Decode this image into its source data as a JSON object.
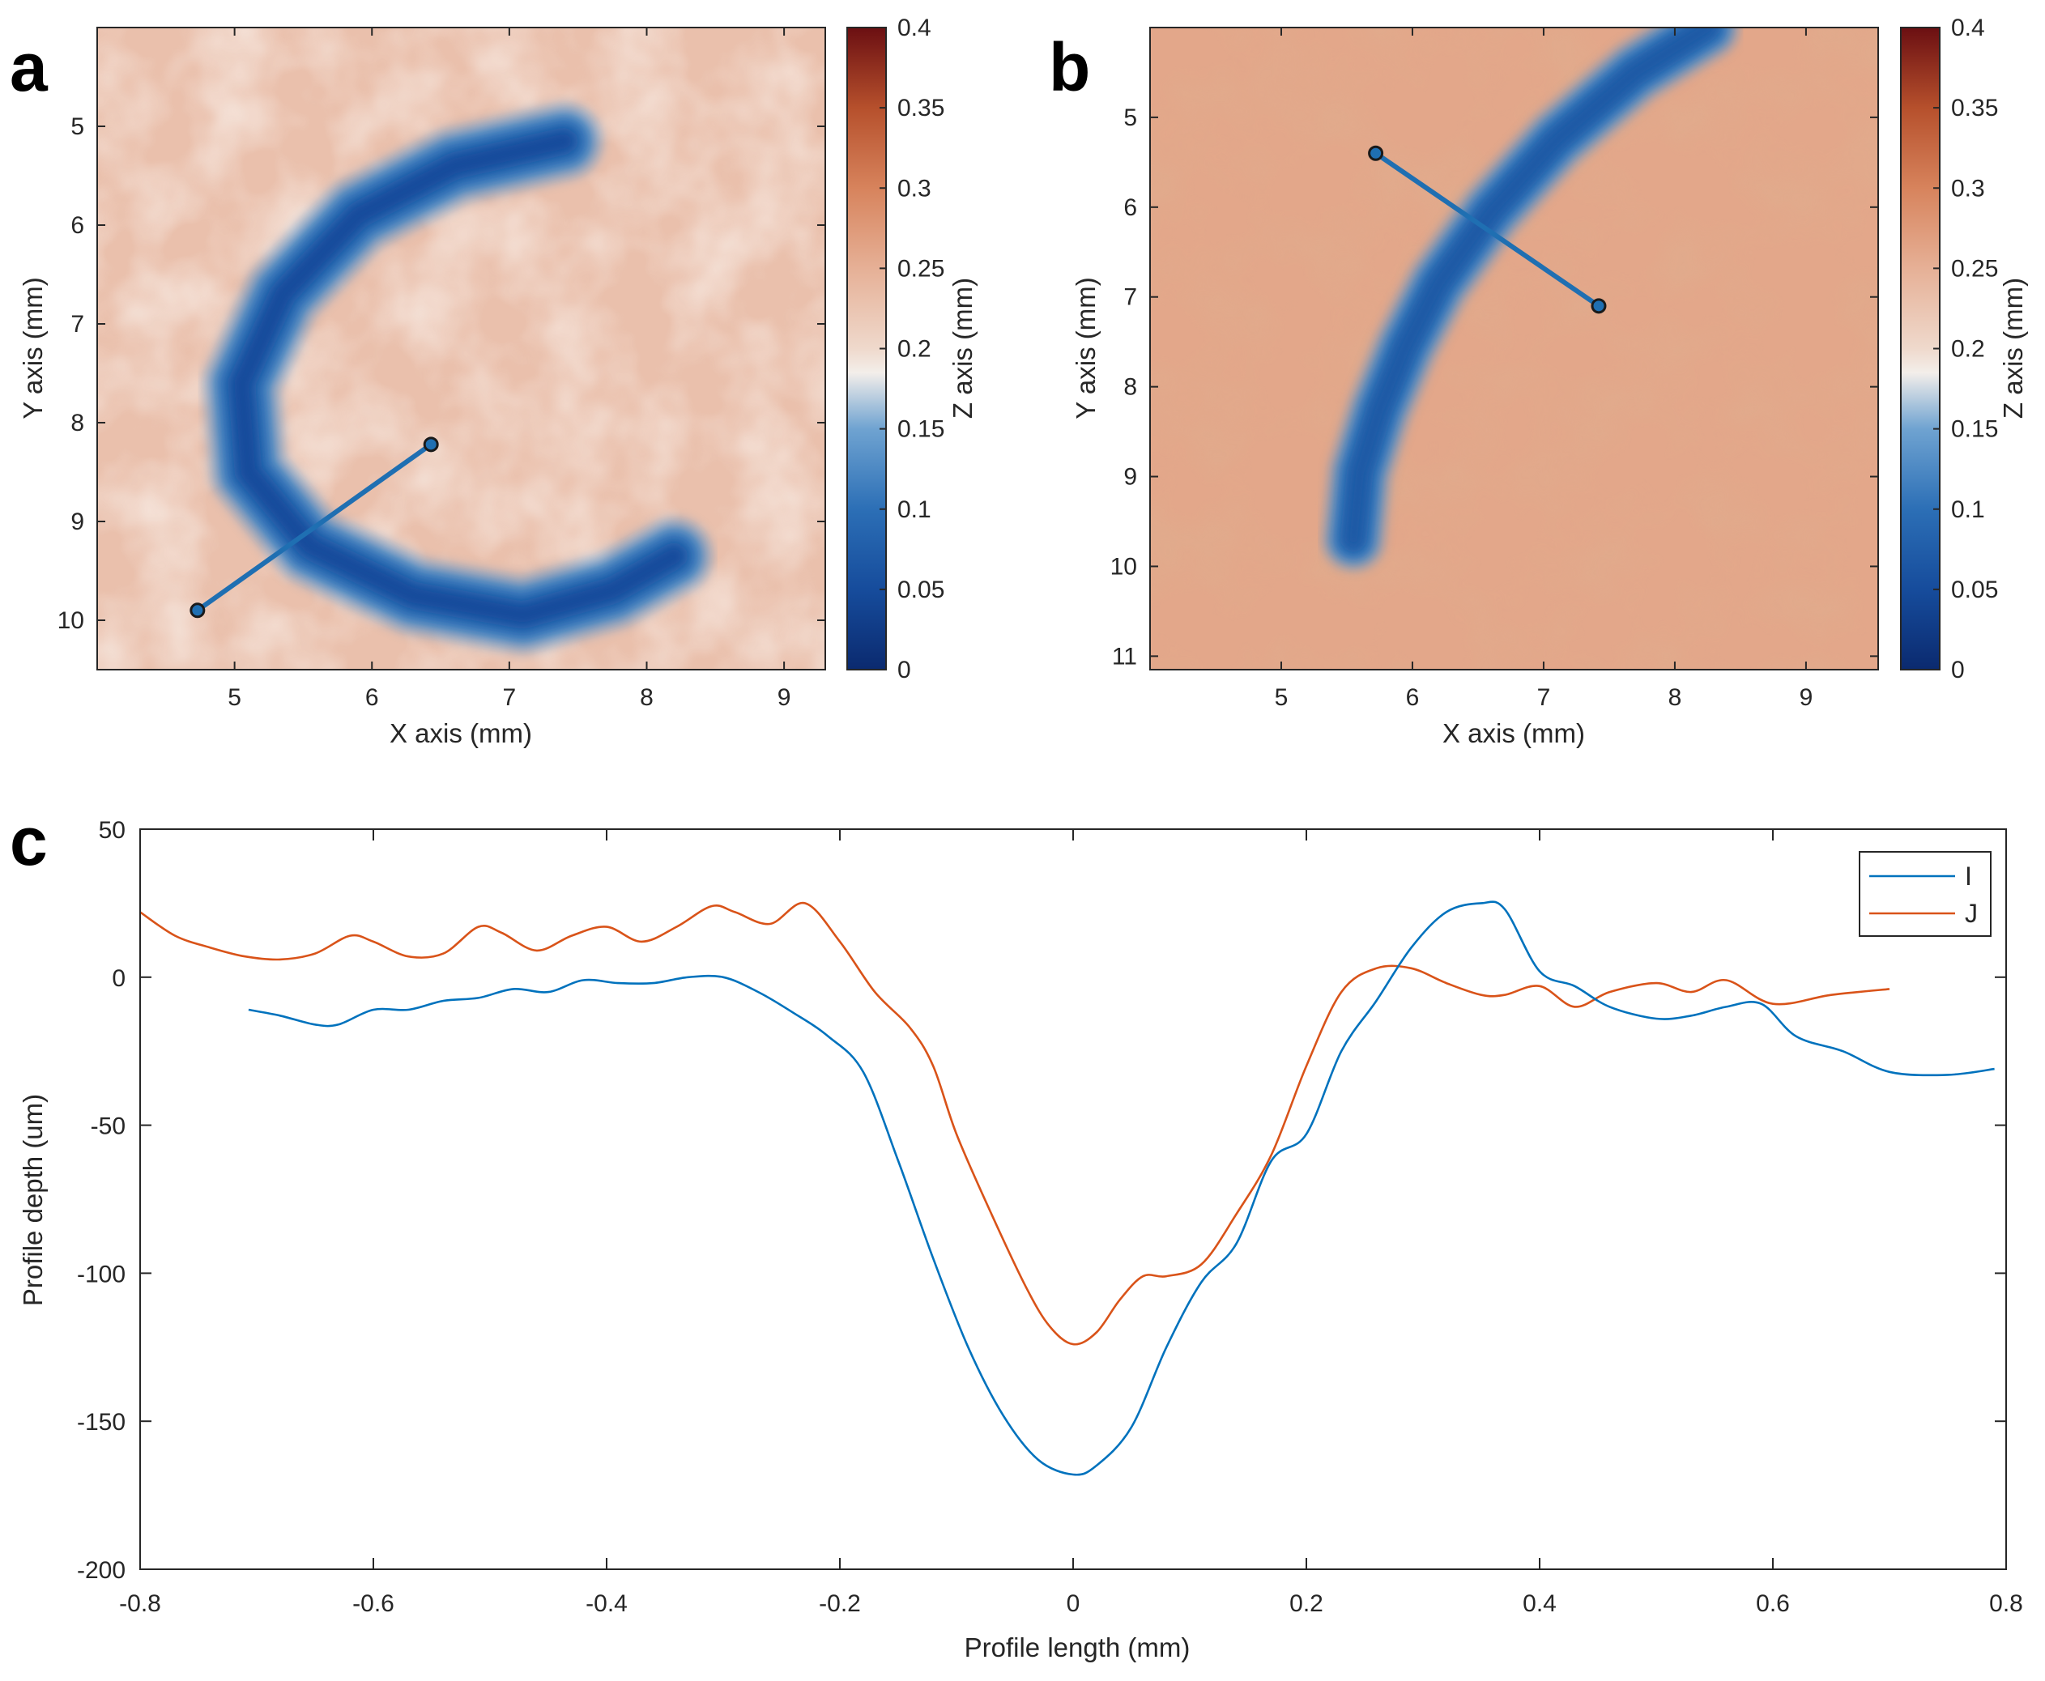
{
  "colors": {
    "series_I": "#0072BD",
    "series_J": "#D95319",
    "axis": "#262626",
    "profile_line": "#1f6fb2"
  },
  "colormap_stops": [
    [
      0,
      "#0b2a6f"
    ],
    [
      0.05,
      "#164c9c"
    ],
    [
      0.1,
      "#2c6fb6"
    ],
    [
      0.15,
      "#6fa3d1"
    ],
    [
      0.185,
      "#f3eeea"
    ],
    [
      0.2,
      "#efd9cc"
    ],
    [
      0.25,
      "#e6b096"
    ],
    [
      0.3,
      "#d7835c"
    ],
    [
      0.35,
      "#b6502c"
    ],
    [
      0.4,
      "#6b0f12"
    ]
  ],
  "chart_data": [
    {
      "panel": "a",
      "type": "heatmap",
      "xlabel": "X axis (mm)",
      "ylabel": "Y axis (mm)",
      "xlim": [
        4,
        9.3
      ],
      "ylim": [
        4,
        10.5
      ],
      "x_ticks": [
        5,
        6,
        7,
        8,
        9
      ],
      "y_ticks": [
        5,
        6,
        7,
        8,
        9,
        10
      ],
      "colorbar": {
        "label": "Z axis (mm)",
        "range": [
          0,
          0.4
        ],
        "ticks": [
          0,
          0.05,
          0.1,
          0.15,
          0.2,
          0.25,
          0.3,
          0.35,
          0.4
        ],
        "tick_labels": [
          "0",
          "0.05",
          "0.1",
          "0.15",
          "0.2",
          "0.25",
          "0.3",
          "0.35",
          "0.4"
        ]
      },
      "profile_line": [
        [
          4.73,
          9.9
        ],
        [
          6.43,
          8.22
        ]
      ],
      "groove_path": [
        [
          7.4,
          5.15
        ],
        [
          6.6,
          5.4
        ],
        [
          5.9,
          5.9
        ],
        [
          5.35,
          6.7
        ],
        [
          5.05,
          7.6
        ],
        [
          5.1,
          8.5
        ],
        [
          5.55,
          9.25
        ],
        [
          6.3,
          9.75
        ],
        [
          7.1,
          9.95
        ],
        [
          7.75,
          9.7
        ],
        [
          8.2,
          9.35
        ]
      ],
      "groove_width_mm": 0.42,
      "groove_depth": 0.05,
      "background_value": 0.23
    },
    {
      "panel": "b",
      "type": "heatmap",
      "xlabel": "X axis (mm)",
      "ylabel": "Y axis (mm)",
      "xlim": [
        4,
        9.55
      ],
      "ylim": [
        4,
        11.15
      ],
      "x_ticks": [
        5,
        6,
        7,
        8,
        9
      ],
      "y_ticks": [
        5,
        6,
        7,
        8,
        9,
        10,
        11
      ],
      "colorbar": {
        "label": "Z axis (mm)",
        "range": [
          0,
          0.4
        ],
        "ticks": [
          0,
          0.05,
          0.1,
          0.15,
          0.2,
          0.25,
          0.3,
          0.35,
          0.4
        ],
        "tick_labels": [
          "0",
          "0.05",
          "0.1",
          "0.15",
          "0.2",
          "0.25",
          "0.3",
          "0.35",
          "0.4"
        ]
      },
      "profile_line": [
        [
          5.72,
          5.4
        ],
        [
          7.42,
          7.1
        ]
      ],
      "groove_path": [
        [
          8.25,
          4.0
        ],
        [
          7.7,
          4.5
        ],
        [
          7.1,
          5.25
        ],
        [
          6.6,
          6.05
        ],
        [
          6.2,
          6.85
        ],
        [
          5.95,
          7.55
        ],
        [
          5.75,
          8.25
        ],
        [
          5.6,
          8.95
        ],
        [
          5.55,
          9.7
        ]
      ],
      "groove_width_mm": 0.36,
      "groove_depth": 0.07,
      "background_value": 0.26
    },
    {
      "panel": "c",
      "type": "line",
      "xlabel": "Profile length (mm)",
      "ylabel": "Profile depth (um)",
      "xlim": [
        -0.8,
        0.8
      ],
      "ylim": [
        -200,
        50
      ],
      "x_ticks": [
        -0.8,
        -0.6,
        -0.4,
        -0.2,
        0,
        0.2,
        0.4,
        0.6,
        0.8
      ],
      "x_tick_labels": [
        "-0.8",
        "-0.6",
        "-0.4",
        "-0.2",
        "0",
        "0.2",
        "0.4",
        "0.6",
        "0.8"
      ],
      "y_ticks": [
        -200,
        -150,
        -100,
        -50,
        0,
        50
      ],
      "y_tick_labels": [
        "-200",
        "-150",
        "-100",
        "-50",
        "0",
        "50"
      ],
      "legend_position": "top-right",
      "series": [
        {
          "name": "I",
          "x": [
            -0.707,
            -0.68,
            -0.65,
            -0.63,
            -0.6,
            -0.57,
            -0.54,
            -0.51,
            -0.48,
            -0.45,
            -0.42,
            -0.39,
            -0.36,
            -0.33,
            -0.3,
            -0.27,
            -0.24,
            -0.21,
            -0.18,
            -0.15,
            -0.12,
            -0.09,
            -0.06,
            -0.03,
            0,
            0.02,
            0.05,
            0.08,
            0.11,
            0.14,
            0.17,
            0.2,
            0.23,
            0.26,
            0.29,
            0.32,
            0.35,
            0.37,
            0.4,
            0.43,
            0.46,
            0.5,
            0.53,
            0.56,
            0.59,
            0.62,
            0.66,
            0.7,
            0.75,
            0.79
          ],
          "values": [
            -11,
            -13,
            -16,
            -16,
            -11,
            -11,
            -8,
            -7,
            -4,
            -5,
            -1,
            -2,
            -2,
            0,
            0,
            -5,
            -12,
            -20,
            -32,
            -62,
            -95,
            -125,
            -148,
            -163,
            -168,
            -165,
            -152,
            -125,
            -103,
            -90,
            -62,
            -53,
            -25,
            -8,
            10,
            22,
            25,
            23,
            2,
            -3,
            -10,
            -14,
            -13,
            -10,
            -9,
            -20,
            -25,
            -32,
            -33,
            -31
          ]
        },
        {
          "name": "J",
          "x": [
            -0.8,
            -0.77,
            -0.74,
            -0.71,
            -0.68,
            -0.65,
            -0.62,
            -0.6,
            -0.57,
            -0.54,
            -0.51,
            -0.49,
            -0.46,
            -0.43,
            -0.4,
            -0.37,
            -0.34,
            -0.31,
            -0.29,
            -0.26,
            -0.23,
            -0.2,
            -0.17,
            -0.14,
            -0.12,
            -0.1,
            -0.07,
            -0.04,
            -0.02,
            0,
            0.02,
            0.04,
            0.06,
            0.08,
            0.11,
            0.14,
            0.17,
            0.2,
            0.23,
            0.26,
            0.29,
            0.32,
            0.35,
            0.37,
            0.4,
            0.43,
            0.46,
            0.5,
            0.53,
            0.56,
            0.6,
            0.65,
            0.7
          ],
          "values": [
            22,
            14,
            10,
            7,
            6,
            8,
            14,
            12,
            7,
            8,
            17,
            15,
            9,
            14,
            17,
            12,
            17,
            24,
            22,
            18,
            25,
            12,
            -5,
            -17,
            -30,
            -53,
            -80,
            -105,
            -118,
            -124,
            -120,
            -109,
            -101,
            -101,
            -97,
            -80,
            -60,
            -30,
            -5,
            3,
            3,
            -2,
            -6,
            -6,
            -3,
            -10,
            -5,
            -2,
            -5,
            -1,
            -9,
            -6,
            -4
          ]
        }
      ]
    }
  ],
  "panels": {
    "a": {
      "letter": "a",
      "x_tick_labels": [
        "5",
        "6",
        "7",
        "8",
        "9"
      ],
      "y_tick_labels": [
        "5",
        "6",
        "7",
        "8",
        "9",
        "10"
      ],
      "xlabel": "X axis (mm)",
      "ylabel": "Y axis (mm)",
      "colorbar_label": "Z axis (mm)"
    },
    "b": {
      "letter": "b",
      "x_tick_labels": [
        "5",
        "6",
        "7",
        "8",
        "9"
      ],
      "y_tick_labels": [
        "5",
        "6",
        "7",
        "8",
        "9",
        "10",
        "11"
      ],
      "xlabel": "X axis (mm)",
      "ylabel": "Y axis (mm)",
      "colorbar_label": "Z axis (mm)"
    },
    "c": {
      "letter": "c",
      "xlabel": "Profile length (mm)",
      "ylabel": "Profile depth (um)",
      "legend_I": "I",
      "legend_J": "J"
    }
  }
}
